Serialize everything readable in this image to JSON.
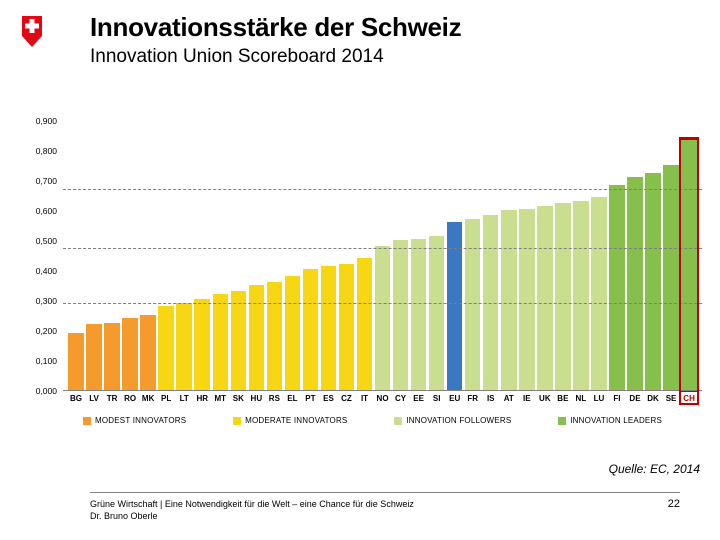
{
  "title": "Innovationsstärke der Schweiz",
  "subtitle": "Innovation Union Scoreboard 2014",
  "source_text": "Quelle: EC, 2014",
  "footer_line1": "Grüne Wirtschaft | Eine Notwendigkeit für die Welt – eine Chance für die Schweiz",
  "footer_line2": "Dr. Bruno Oberle",
  "page_number": "22",
  "chart": {
    "type": "bar",
    "y_axis": {
      "min": 0,
      "max": 0.9,
      "ticks": [
        0,
        0.1,
        0.2,
        0.3,
        0.4,
        0.5,
        0.6,
        0.7,
        0.8,
        0.9
      ]
    },
    "tick_labels": [
      "0,000",
      "0,100",
      "0,200",
      "0,300",
      "0,400",
      "0,500",
      "0,600",
      "0,700",
      "0,800",
      "0,900"
    ],
    "ref_lines": [
      0.29,
      0.475,
      0.67
    ],
    "ref_line_color": "#7f7f7f",
    "eu": {
      "code": "EU",
      "value": 0.56,
      "color": "#3b78c4",
      "position_after": "SI"
    },
    "groups": [
      {
        "name": "MODEST INNOVATORS",
        "color": "#f59b2e"
      },
      {
        "name": "MODERATE INNOVATORS",
        "color": "#f7d714"
      },
      {
        "name": "INNOVATION FOLLOWERS",
        "color": "#c9de8e"
      },
      {
        "name": "INNOVATION LEADERS",
        "color": "#86bf4b"
      }
    ],
    "bars": [
      {
        "code": "BG",
        "value": 0.19,
        "group": 0
      },
      {
        "code": "LV",
        "value": 0.22,
        "group": 0
      },
      {
        "code": "TR",
        "value": 0.225,
        "group": 0
      },
      {
        "code": "RO",
        "value": 0.24,
        "group": 0
      },
      {
        "code": "MK",
        "value": 0.25,
        "group": 0
      },
      {
        "code": "PL",
        "value": 0.28,
        "group": 1
      },
      {
        "code": "LT",
        "value": 0.29,
        "group": 1
      },
      {
        "code": "HR",
        "value": 0.305,
        "group": 1
      },
      {
        "code": "MT",
        "value": 0.32,
        "group": 1
      },
      {
        "code": "SK",
        "value": 0.33,
        "group": 1
      },
      {
        "code": "HU",
        "value": 0.35,
        "group": 1
      },
      {
        "code": "RS",
        "value": 0.36,
        "group": 1
      },
      {
        "code": "EL",
        "value": 0.38,
        "group": 1
      },
      {
        "code": "PT",
        "value": 0.405,
        "group": 1
      },
      {
        "code": "ES",
        "value": 0.415,
        "group": 1
      },
      {
        "code": "CZ",
        "value": 0.42,
        "group": 1
      },
      {
        "code": "IT",
        "value": 0.44,
        "group": 1
      },
      {
        "code": "NO",
        "value": 0.48,
        "group": 2
      },
      {
        "code": "CY",
        "value": 0.5,
        "group": 2
      },
      {
        "code": "EE",
        "value": 0.505,
        "group": 2
      },
      {
        "code": "SI",
        "value": 0.515,
        "group": 2
      },
      {
        "code": "FR",
        "value": 0.57,
        "group": 2
      },
      {
        "code": "IS",
        "value": 0.585,
        "group": 2
      },
      {
        "code": "AT",
        "value": 0.6,
        "group": 2
      },
      {
        "code": "IE",
        "value": 0.605,
        "group": 2
      },
      {
        "code": "UK",
        "value": 0.615,
        "group": 2
      },
      {
        "code": "BE",
        "value": 0.625,
        "group": 2
      },
      {
        "code": "NL",
        "value": 0.63,
        "group": 2
      },
      {
        "code": "LU",
        "value": 0.645,
        "group": 2
      },
      {
        "code": "FI",
        "value": 0.685,
        "group": 3
      },
      {
        "code": "DE",
        "value": 0.71,
        "group": 3
      },
      {
        "code": "DK",
        "value": 0.725,
        "group": 3
      },
      {
        "code": "SE",
        "value": 0.75,
        "group": 3
      },
      {
        "code": "CH",
        "value": 0.835,
        "group": 3,
        "highlight": true
      }
    ],
    "highlight_color": "#c00000",
    "label_fontsize": 8,
    "tick_fontsize": 8.5,
    "background_color": "#ffffff",
    "base_line_color": "#808080",
    "grid_color": "#cfcfcf",
    "bar_width": 0.86
  },
  "colors": {
    "swiss_red": "#e30613",
    "swiss_white": "#ffffff",
    "text": "#000000"
  }
}
